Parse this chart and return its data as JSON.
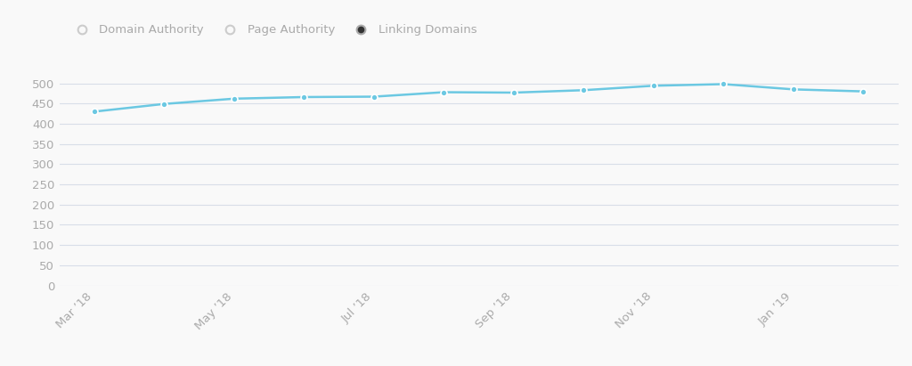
{
  "x_labels": [
    "Mar ’18",
    "May ’18",
    "Jul ’18",
    "Sep ’18",
    "Nov ’18",
    "Jan ’19"
  ],
  "x_tick_positions": [
    0,
    2,
    4,
    6,
    8,
    10
  ],
  "x_values": [
    0,
    1,
    2,
    3,
    4,
    5,
    6,
    7,
    8,
    9,
    10,
    11
  ],
  "y_values": [
    430,
    449,
    462,
    466,
    467,
    478,
    477,
    483,
    494,
    498,
    485,
    480
  ],
  "line_color": "#6bc8e2",
  "marker_color": "#6bc8e2",
  "marker_edge_color": "#ffffff",
  "background_color": "#f9f9f9",
  "grid_color": "#d8dee8",
  "tick_label_color": "#aaaaaa",
  "legend_items": [
    "Domain Authority",
    "Page Authority",
    "Linking Domains"
  ],
  "ylim": [
    0,
    525
  ],
  "yticks": [
    0,
    50,
    100,
    150,
    200,
    250,
    300,
    350,
    400,
    450,
    500
  ],
  "legend_fontsize": 9.5,
  "tick_fontsize": 9.5
}
